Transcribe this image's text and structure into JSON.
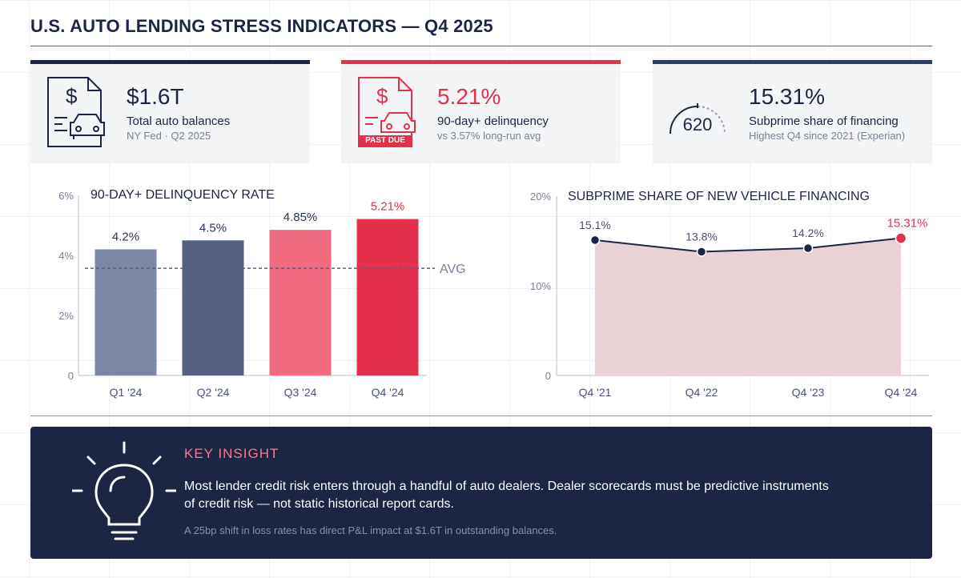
{
  "title": "U.S. AUTO LENDING STRESS INDICATORS — Q4 2025",
  "kpis": [
    {
      "value": "$1.6T",
      "label": "Total auto balances",
      "note": "NY Fed · Q2 2025",
      "accent": "#1c2541",
      "icon": "auto-loan-document-icon"
    },
    {
      "value": "5.21%",
      "label": "90-day+ delinquency",
      "note": "vs 3.57% long-run avg",
      "accent": "#e3304d",
      "icon": "past-due-document-icon",
      "badge": "PAST DUE"
    },
    {
      "value": "15.31%",
      "label": "Subprime share of financing",
      "note": "Highest Q4 since 2021 (Experian)",
      "accent": "#1c2541",
      "icon": "credit-score-gauge-icon",
      "gauge_value": "620"
    }
  ],
  "chart_data": [
    {
      "type": "bar",
      "title": "90-DAY+ DELINQUENCY RATE",
      "categories": [
        "Q1 '24",
        "Q2 '24",
        "Q3 '24",
        "Q4 '24"
      ],
      "values": [
        4.2,
        4.5,
        4.85,
        5.21
      ],
      "value_labels": [
        "4.2%",
        "4.5%",
        "4.85%",
        "5.21%"
      ],
      "colors": [
        "#7d88a4",
        "#55607f",
        "#f06a80",
        "#e3304d"
      ],
      "highlight_color": "#e3304d",
      "ylim": [
        0,
        6
      ],
      "ticks": [
        0,
        2,
        4,
        6
      ],
      "tick_labels": [
        "0",
        "2%",
        "4%",
        "6%"
      ],
      "reference_line": {
        "value": 3.57,
        "label": "AVG"
      }
    },
    {
      "type": "area",
      "title": "SUBPRIME SHARE OF NEW VEHICLE FINANCING",
      "categories": [
        "Q4 '21",
        "Q4 '22",
        "Q4 '23",
        "Q4 '24"
      ],
      "values": [
        15.1,
        13.8,
        14.2,
        15.31
      ],
      "value_labels": [
        "15.1%",
        "13.8%",
        "14.2%",
        "15.31%"
      ],
      "ylim": [
        0,
        20
      ],
      "ticks": [
        0,
        10,
        20
      ],
      "tick_labels": [
        "0",
        "10%",
        "20%"
      ],
      "line_color": "#1c2541",
      "fill_color": "#e8d2d6",
      "highlight_color": "#e3304d"
    }
  ],
  "insight": {
    "heading": "KEY INSIGHT",
    "body": "Most lender credit risk enters through a handful of auto dealers. Dealer scorecards must be predictive instruments of credit risk — not static historical report cards.",
    "footnote": "A 25bp shift in loss rates has direct P&L impact at $1.6T in outstanding balances."
  }
}
